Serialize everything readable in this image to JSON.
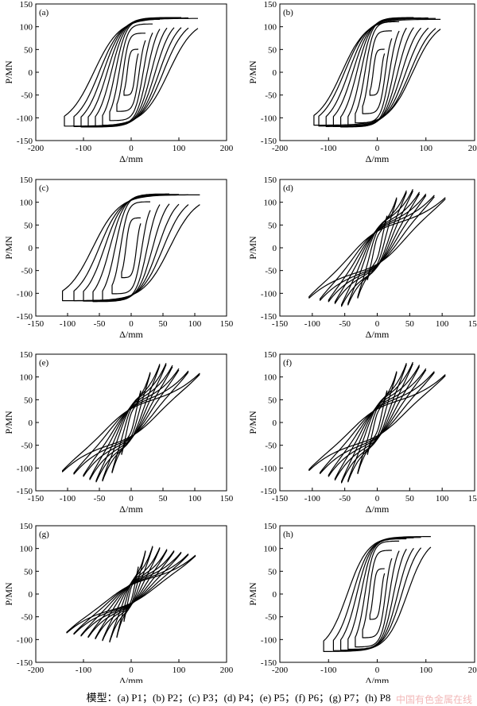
{
  "caption": "模型：(a) P1；(b) P2；(c) P3；(d) P4；(e) P5；(f) P6；(g) P7；(h) P8",
  "watermark": "中国有色金属在线",
  "chart_data": [
    {
      "type": "line",
      "label": "(a)",
      "xlabel": "Δ/mm",
      "ylabel": "P/MN",
      "xlim": [
        -200,
        200
      ],
      "ylim": [
        -150,
        150
      ],
      "xticks": [
        -200,
        -100,
        0,
        100,
        200
      ],
      "yticks": [
        -150,
        -100,
        -50,
        0,
        50,
        100,
        150
      ],
      "amplitudes": [
        15,
        30,
        45,
        60,
        75,
        90,
        105,
        120,
        140
      ],
      "peak_load": [
        50,
        85,
        105,
        115,
        118,
        119,
        119,
        118,
        117
      ],
      "pinch": 0.0
    },
    {
      "type": "line",
      "label": "(b)",
      "xlabel": "Δ/mm",
      "ylabel": "P/MN",
      "xlim": [
        -200,
        200
      ],
      "ylim": [
        -150,
        150
      ],
      "xticks": [
        -200,
        -100,
        0,
        100,
        200
      ],
      "yticks": [
        -150,
        -100,
        -50,
        0,
        50,
        100,
        150
      ],
      "amplitudes": [
        15,
        30,
        45,
        60,
        75,
        90,
        105,
        120,
        130
      ],
      "peak_load": [
        50,
        90,
        110,
        118,
        119,
        118,
        118,
        117,
        115
      ],
      "pinch": 0.0
    },
    {
      "type": "line",
      "label": "(c)",
      "xlabel": "Δ/mm",
      "ylabel": "P/MN",
      "xlim": [
        -150,
        150
      ],
      "ylim": [
        -150,
        150
      ],
      "xticks": [
        -150,
        -100,
        -50,
        0,
        50,
        100,
        150
      ],
      "yticks": [
        -150,
        -100,
        -50,
        0,
        50,
        100,
        150
      ],
      "amplitudes": [
        15,
        30,
        45,
        60,
        75,
        90,
        108
      ],
      "peak_load": [
        65,
        100,
        115,
        117,
        116,
        115,
        115
      ],
      "pinch": 0.0
    },
    {
      "type": "line",
      "label": "(d)",
      "xlabel": "Δ/mm",
      "ylabel": "P/MN",
      "xlim": [
        -150,
        150
      ],
      "ylim": [
        -150,
        150
      ],
      "xticks": [
        -150,
        -100,
        -50,
        0,
        50,
        100,
        150
      ],
      "yticks": [
        -150,
        -100,
        -50,
        0,
        50,
        100,
        150
      ],
      "amplitudes": [
        15,
        30,
        45,
        55,
        65,
        75,
        88,
        105
      ],
      "peak_load": [
        70,
        110,
        125,
        128,
        122,
        118,
        115,
        110
      ],
      "pinch": 0.55
    },
    {
      "type": "line",
      "label": "(e)",
      "xlabel": "Δ/mm",
      "ylabel": "P/MN",
      "xlim": [
        -150,
        150
      ],
      "ylim": [
        -150,
        150
      ],
      "xticks": [
        -150,
        -100,
        -50,
        0,
        50,
        100,
        150
      ],
      "yticks": [
        -150,
        -100,
        -50,
        0,
        50,
        100,
        150
      ],
      "amplitudes": [
        15,
        30,
        45,
        55,
        65,
        75,
        90,
        108
      ],
      "peak_load": [
        70,
        110,
        128,
        130,
        125,
        118,
        113,
        108
      ],
      "pinch": 0.6
    },
    {
      "type": "line",
      "label": "(f)",
      "xlabel": "Δ/mm",
      "ylabel": "P/MN",
      "xlim": [
        -150,
        150
      ],
      "ylim": [
        -150,
        150
      ],
      "xticks": [
        -150,
        -100,
        -50,
        0,
        50,
        100,
        150
      ],
      "yticks": [
        -150,
        -100,
        -50,
        0,
        50,
        100,
        150
      ],
      "amplitudes": [
        15,
        30,
        45,
        55,
        65,
        75,
        88,
        105
      ],
      "peak_load": [
        70,
        112,
        130,
        132,
        126,
        118,
        112,
        105
      ],
      "pinch": 0.6
    },
    {
      "type": "line",
      "label": "(g)",
      "xlabel": "Δ/mm",
      "ylabel": "P/MN",
      "xlim": [
        -200,
        200
      ],
      "ylim": [
        -150,
        150
      ],
      "xticks": [
        -200,
        -100,
        0,
        100,
        200
      ],
      "yticks": [
        -150,
        -100,
        -50,
        0,
        50,
        100,
        150
      ],
      "amplitudes": [
        15,
        30,
        45,
        60,
        75,
        90,
        105,
        120,
        135
      ],
      "peak_load": [
        60,
        95,
        105,
        102,
        98,
        95,
        92,
        88,
        85
      ],
      "pinch": 0.65
    },
    {
      "type": "line",
      "label": "(h)",
      "xlabel": "Δ/mm",
      "ylabel": "P/MN",
      "xlim": [
        -200,
        200
      ],
      "ylim": [
        -150,
        150
      ],
      "xticks": [
        -200,
        -100,
        0,
        100,
        200
      ],
      "yticks": [
        -150,
        -100,
        -50,
        0,
        50,
        100,
        150
      ],
      "amplitudes": [
        15,
        30,
        45,
        60,
        75,
        90,
        110
      ],
      "peak_load": [
        55,
        95,
        115,
        120,
        122,
        123,
        125
      ],
      "pinch": 0.0
    }
  ]
}
